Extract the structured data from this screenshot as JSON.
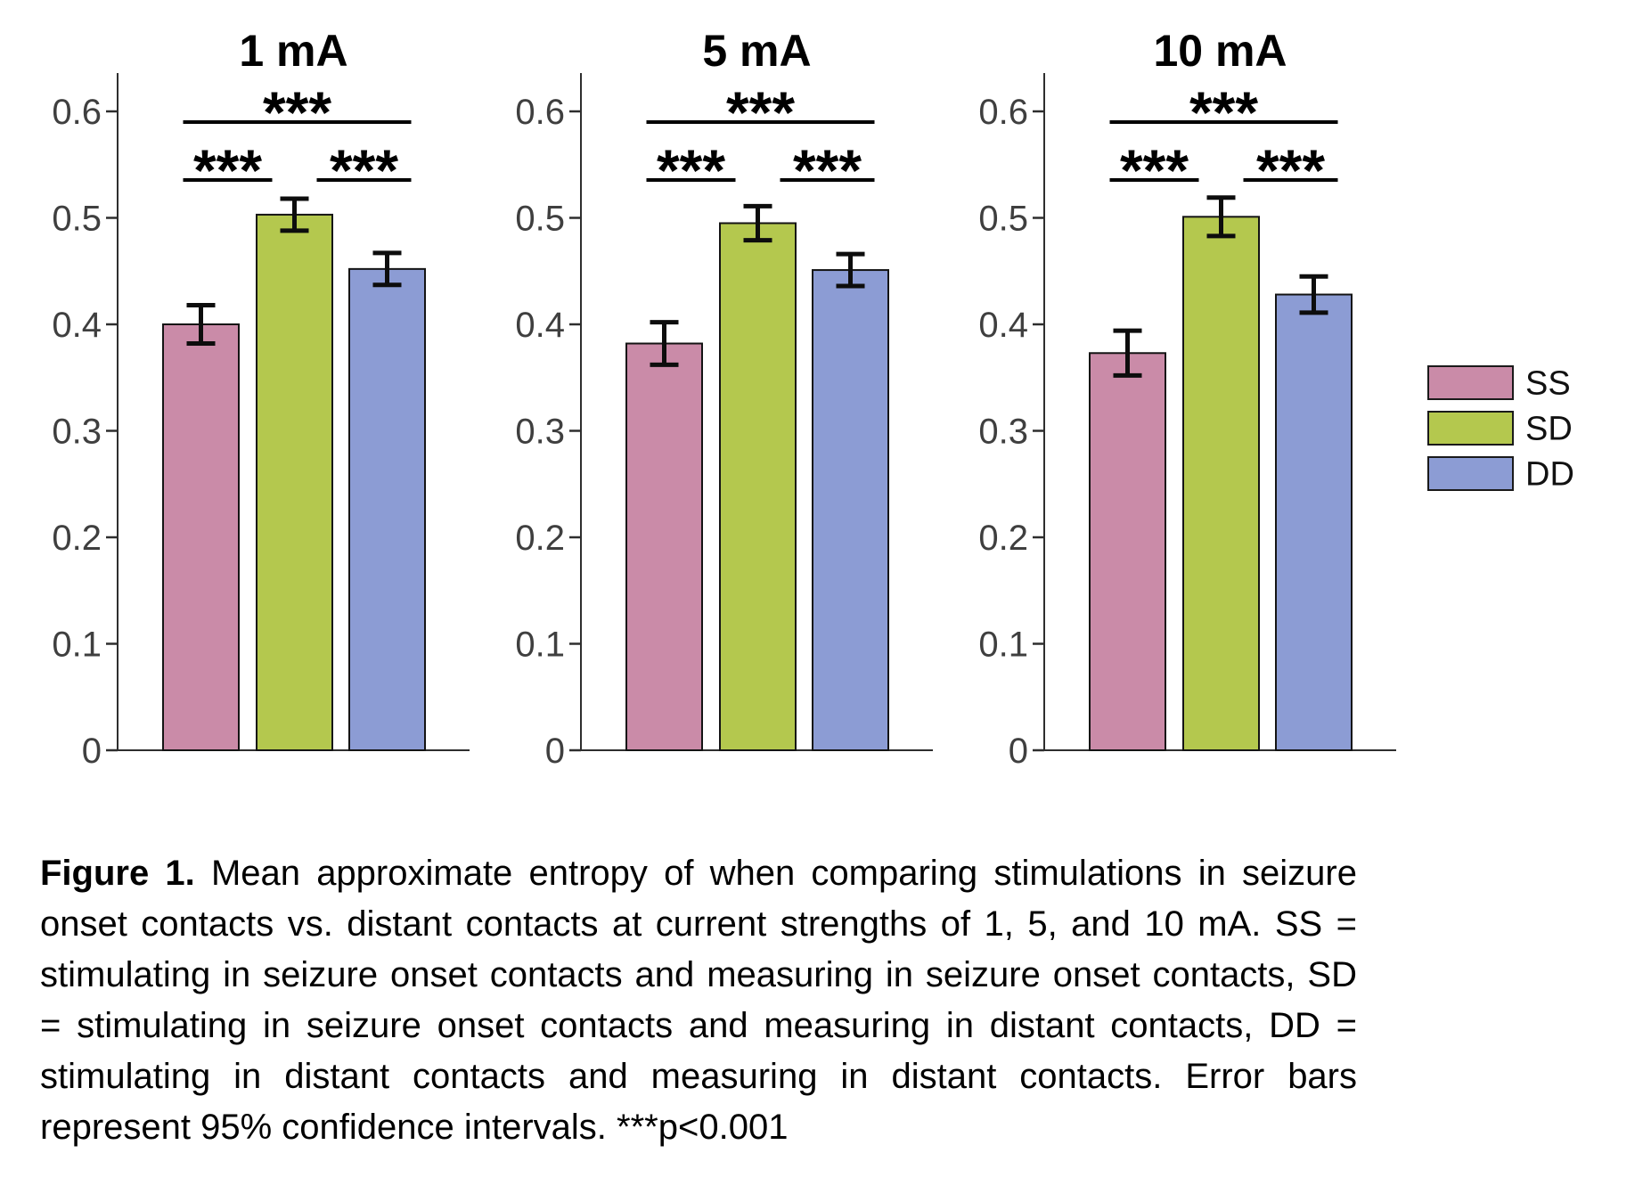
{
  "caption": {
    "label": "Figure 1.",
    "text": "Mean approximate entropy of when comparing stimulations in seizure onset contacts vs. distant contacts at current strengths of 1, 5, and 10 mA. SS = stimulating in seizure onset contacts and measuring in seizure onset contacts, SD = stimulating in seizure onset contacts and measuring in distant contacts, DD = stimulating in distant contacts and measuring in distant contacts. Error bars represent 95% confidence intervals. ***p<0.001"
  },
  "chart_data": {
    "type": "bar",
    "categories": [
      "SS",
      "SD",
      "DD"
    ],
    "colors": {
      "SS": "#CA8BA8",
      "SD": "#B4C84E",
      "DD": "#8C9CD4"
    },
    "bar_border_color": "#141414",
    "axis_color": "#2e2e2e",
    "tick_label_color": "#3f3f3f",
    "errorbar_color": "#0d0d0d",
    "ylim": [
      0,
      0.63
    ],
    "yticks": [
      0,
      0.1,
      0.2,
      0.3,
      0.4,
      0.5,
      0.6
    ],
    "ytick_labels": [
      "0",
      "0.1",
      "0.2",
      "0.3",
      "0.4",
      "0.5",
      "0.6"
    ],
    "xlabel": "",
    "ylabel": "",
    "grid": false,
    "legend": {
      "position": "right",
      "entries": [
        "SS",
        "SD",
        "DD"
      ]
    },
    "error_bars": "95% confidence intervals",
    "sig_note": "***p<0.001",
    "panels": [
      {
        "title": "1 mA",
        "series": [
          {
            "name": "SS",
            "mean": 0.4,
            "ci95": 0.018
          },
          {
            "name": "SD",
            "mean": 0.503,
            "ci95": 0.015
          },
          {
            "name": "DD",
            "mean": 0.452,
            "ci95": 0.015
          }
        ],
        "significance": [
          {
            "pair": [
              "SS",
              "SD"
            ],
            "label": "***"
          },
          {
            "pair": [
              "SD",
              "DD"
            ],
            "label": "***"
          },
          {
            "pair": [
              "SS",
              "DD"
            ],
            "label": "***"
          }
        ]
      },
      {
        "title": "5 mA",
        "series": [
          {
            "name": "SS",
            "mean": 0.382,
            "ci95": 0.02
          },
          {
            "name": "SD",
            "mean": 0.495,
            "ci95": 0.016
          },
          {
            "name": "DD",
            "mean": 0.451,
            "ci95": 0.015
          }
        ],
        "significance": [
          {
            "pair": [
              "SS",
              "SD"
            ],
            "label": "***"
          },
          {
            "pair": [
              "SD",
              "DD"
            ],
            "label": "***"
          },
          {
            "pair": [
              "SS",
              "DD"
            ],
            "label": "***"
          }
        ]
      },
      {
        "title": "10 mA",
        "series": [
          {
            "name": "SS",
            "mean": 0.373,
            "ci95": 0.021
          },
          {
            "name": "SD",
            "mean": 0.501,
            "ci95": 0.018
          },
          {
            "name": "DD",
            "mean": 0.428,
            "ci95": 0.017
          }
        ],
        "significance": [
          {
            "pair": [
              "SS",
              "SD"
            ],
            "label": "***"
          },
          {
            "pair": [
              "SD",
              "DD"
            ],
            "label": "***"
          },
          {
            "pair": [
              "SS",
              "DD"
            ],
            "label": "***"
          }
        ]
      }
    ]
  }
}
